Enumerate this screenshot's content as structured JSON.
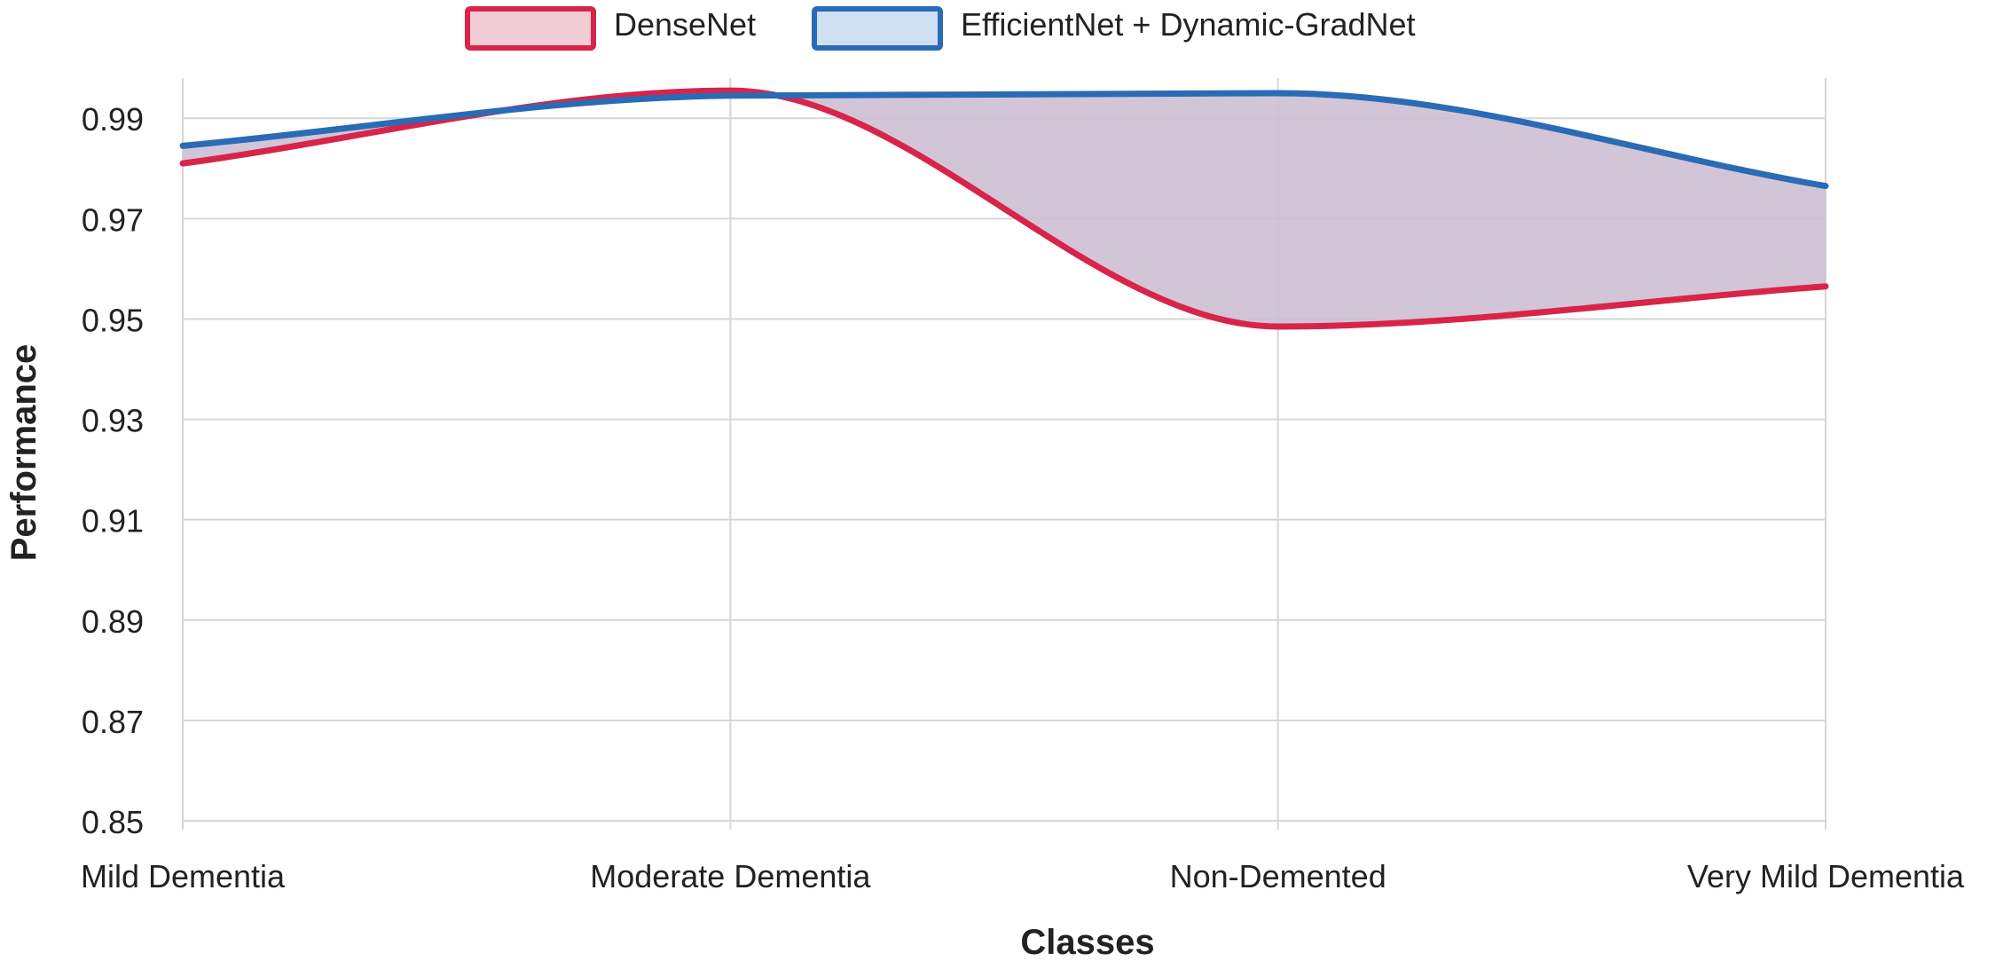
{
  "chart_data": {
    "type": "area",
    "xlabel": "Classes",
    "ylabel": "Performance",
    "categories": [
      "Mild Dementia",
      "Moderate Dementia",
      "Non-Demented",
      "Very Mild Dementia"
    ],
    "ylim": [
      0.85,
      0.998
    ],
    "yticks": [
      "0.99",
      "0.97",
      "0.95",
      "0.93",
      "0.91",
      "0.89",
      "0.87",
      "0.85"
    ],
    "grid": true,
    "legend_position": "top",
    "series": [
      {
        "name": "DenseNet",
        "values": [
          0.981,
          0.9955,
          0.9485,
          0.9565
        ],
        "color": "#d9244a",
        "fill": "#f3cdd6"
      },
      {
        "name": "EfficientNet + Dynamic-GradNet",
        "values": [
          0.9845,
          0.9945,
          0.995,
          0.9765
        ],
        "color": "#2a6bb5",
        "fill": "#cfe0f3"
      }
    ],
    "overlap_fill": "#cdbfd3"
  }
}
